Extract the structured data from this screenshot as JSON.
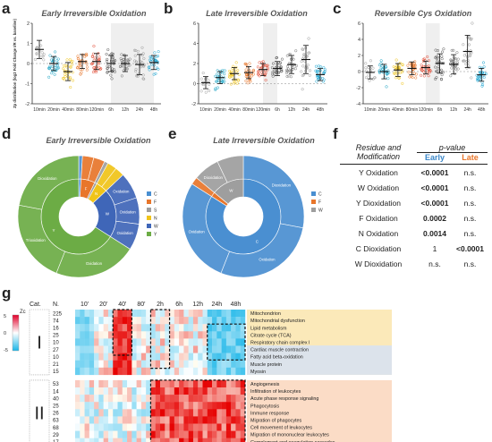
{
  "letters": {
    "a": "a",
    "b": "b",
    "c": "c",
    "d": "d",
    "e": "e",
    "f": "f",
    "g": "g"
  },
  "titles": {
    "a": "Early Irreversible Oxidation",
    "b": "Late Irreversible Oxidation",
    "c": "Reversible Cys Oxidation",
    "d": "Early Irreversible Oxidation",
    "e": "Late Irreversible Oxidation"
  },
  "chart_data": [
    {
      "type": "scatter",
      "panel": "a",
      "ylabel": "Zp distribution (log2 Fold Change I/R vs. baseline)",
      "categories": [
        "10min",
        "20min",
        "40min",
        "80min",
        "120min",
        "6h",
        "12h",
        "24h",
        "48h"
      ],
      "ylim": [
        -2,
        2
      ],
      "yticks": [
        -2,
        -1,
        0,
        1,
        2
      ],
      "means": [
        0.7,
        0.0,
        -0.4,
        0.1,
        0.1,
        0.0,
        0.0,
        -0.05,
        0.05
      ],
      "err": [
        0.45,
        0.35,
        0.45,
        0.35,
        0.4,
        0.4,
        0.4,
        0.5,
        0.35
      ],
      "colors": [
        "#9e9e9e",
        "#17a2c4",
        "#f0c419",
        "#e8762b",
        "#e34a33",
        "#555555",
        "#777777",
        "#999999",
        "#1fa6d2"
      ],
      "shade": [
        "6h",
        "48h"
      ]
    },
    {
      "type": "scatter",
      "panel": "b",
      "categories": [
        "10min",
        "20min",
        "40min",
        "80min",
        "120min",
        "6h",
        "12h",
        "24h",
        "48h"
      ],
      "ylim": [
        -2,
        6
      ],
      "yticks": [
        -2,
        0,
        2,
        4,
        6
      ],
      "means": [
        0.1,
        0.6,
        1.0,
        1.1,
        1.4,
        1.5,
        1.9,
        2.4,
        0.9
      ],
      "err": [
        0.6,
        0.6,
        0.6,
        0.6,
        0.6,
        0.7,
        0.9,
        1.4,
        0.6
      ],
      "colors": [
        "#9e9e9e",
        "#17a2c4",
        "#f0c419",
        "#e8762b",
        "#e34a33",
        "#555555",
        "#777777",
        "#999999",
        "#1fa6d2"
      ],
      "shade": [
        "120min",
        "6h"
      ]
    },
    {
      "type": "scatter",
      "panel": "c",
      "categories": [
        "10min",
        "20min",
        "40min",
        "80min",
        "120min",
        "6h",
        "12h",
        "24h",
        "48h"
      ],
      "ylim": [
        -4,
        6
      ],
      "yticks": [
        -4,
        -2,
        0,
        2,
        4,
        6
      ],
      "means": [
        -0.1,
        0.0,
        0.2,
        0.4,
        0.5,
        1.0,
        0.9,
        2.5,
        -0.4
      ],
      "err": [
        0.8,
        0.9,
        0.8,
        0.8,
        0.8,
        1.2,
        1.2,
        2.0,
        0.8
      ],
      "colors": [
        "#9e9e9e",
        "#17a2c4",
        "#f0c419",
        "#e8762b",
        "#e34a33",
        "#555555",
        "#777777",
        "#999999",
        "#1fa6d2"
      ],
      "shade": [
        "120min",
        "6h"
      ]
    },
    {
      "type": "pie",
      "panel": "d",
      "legend": [
        "C",
        "F",
        "S",
        "N",
        "W",
        "Y"
      ],
      "legend_colors": [
        "#4a8fd1",
        "#e8762b",
        "#9e9e9e",
        "#f0c419",
        "#3f66b8",
        "#6cac45"
      ],
      "inner": [
        {
          "label": "C",
          "value": 1,
          "color": "#4a8fd1"
        },
        {
          "label": "F",
          "value": 6,
          "color": "#e8762b"
        },
        {
          "label": "S",
          "value": 1,
          "color": "#9e9e9e"
        },
        {
          "label": "N",
          "value": 5,
          "color": "#f0c419"
        },
        {
          "label": "W",
          "value": 21,
          "color": "#3f66b8"
        },
        {
          "label": "Y",
          "value": 66,
          "color": "#6cac45"
        }
      ],
      "outer_labels": [
        "Oxidation",
        "Oxidation",
        "Oxidation",
        "Oxidation",
        "Trioxidation",
        "Dioxidation",
        "Oxidation",
        "Oxidation",
        "Dioxidation"
      ]
    },
    {
      "type": "pie",
      "panel": "e",
      "legend": [
        "C",
        "F",
        "W"
      ],
      "legend_colors": [
        "#4a8fd1",
        "#e8762b",
        "#9e9e9e"
      ],
      "inner": [
        {
          "label": "C",
          "value": 84,
          "color": "#4a8fd1"
        },
        {
          "label": "F",
          "value": 2,
          "color": "#e8762b"
        },
        {
          "label": "W",
          "value": 14,
          "color": "#9e9e9e"
        }
      ],
      "outer_labels": [
        "Dioxidation",
        "Oxidation",
        "Oxidation",
        "Dioxidation"
      ]
    },
    {
      "type": "heatmap",
      "panel": "g",
      "scale_label": "Zc",
      "scale_ticks": [
        "5",
        "0",
        "-5"
      ],
      "header": {
        "cat": "Cat.",
        "n": "N."
      },
      "columns": [
        "10'",
        "20'",
        "40'",
        "80'",
        "2h",
        "6h",
        "12h",
        "24h",
        "48h"
      ],
      "groups": [
        {
          "name": "I",
          "rows": [
            {
              "n": "225",
              "term": "Mitochondrion"
            },
            {
              "n": "74",
              "term": "Mitochondrial dysfunction"
            },
            {
              "n": "16",
              "term": "Lipid metabolism"
            },
            {
              "n": "25",
              "term": "Citrate cycle (TCA)"
            },
            {
              "n": "10",
              "term": "Respiratory chain complex I"
            },
            {
              "n": "27",
              "term": "Cardiac muscle contraction"
            },
            {
              "n": "10",
              "term": "Fatty acid beta-oxidation"
            },
            {
              "n": "21",
              "term": "Muscle protein"
            },
            {
              "n": "15",
              "term": "Myosin"
            }
          ]
        },
        {
          "name": "II",
          "rows": [
            {
              "n": "53",
              "term": "Angiogenesis"
            },
            {
              "n": "14",
              "term": "Infiltration of leukocytes"
            },
            {
              "n": "40",
              "term": "Acute phase response signaling"
            },
            {
              "n": "25",
              "term": "Phagocytosis"
            },
            {
              "n": "26",
              "term": "Immune response"
            },
            {
              "n": "63",
              "term": "Migration of phagocytes"
            },
            {
              "n": "68",
              "term": "Cell movement of leukocytes"
            },
            {
              "n": "29",
              "term": "Migration of mononuclear leukocytes"
            },
            {
              "n": "17",
              "term": "Complement and coagulation cascades"
            }
          ]
        }
      ]
    }
  ],
  "table": {
    "h1": "Residue and",
    "h2": "Modification",
    "pv": "p-value",
    "early": "Early",
    "late": "Late",
    "early_color": "#3a86c8",
    "late_color": "#e8762b",
    "rows": [
      {
        "mod": "Y Oxidation",
        "early": "<0.0001",
        "late": "n.s.",
        "eb": true,
        "lb": false
      },
      {
        "mod": "W Oxidation",
        "early": "<0.0001",
        "late": "n.s.",
        "eb": true,
        "lb": false
      },
      {
        "mod": "Y Dioxidation",
        "early": "<0.0001",
        "late": "n.s.",
        "eb": true,
        "lb": false
      },
      {
        "mod": "F Oxidation",
        "early": "0.0002",
        "late": "n.s.",
        "eb": true,
        "lb": false
      },
      {
        "mod": "N Oxidation",
        "early": "0.0014",
        "late": "n.s.",
        "eb": true,
        "lb": false
      },
      {
        "mod": "C Dioxidation",
        "early": "1",
        "late": "<0.0001",
        "eb": false,
        "lb": true
      },
      {
        "mod": "W Dioxidation",
        "early": "n.s.",
        "late": "n.s.",
        "eb": false,
        "lb": false
      }
    ]
  }
}
